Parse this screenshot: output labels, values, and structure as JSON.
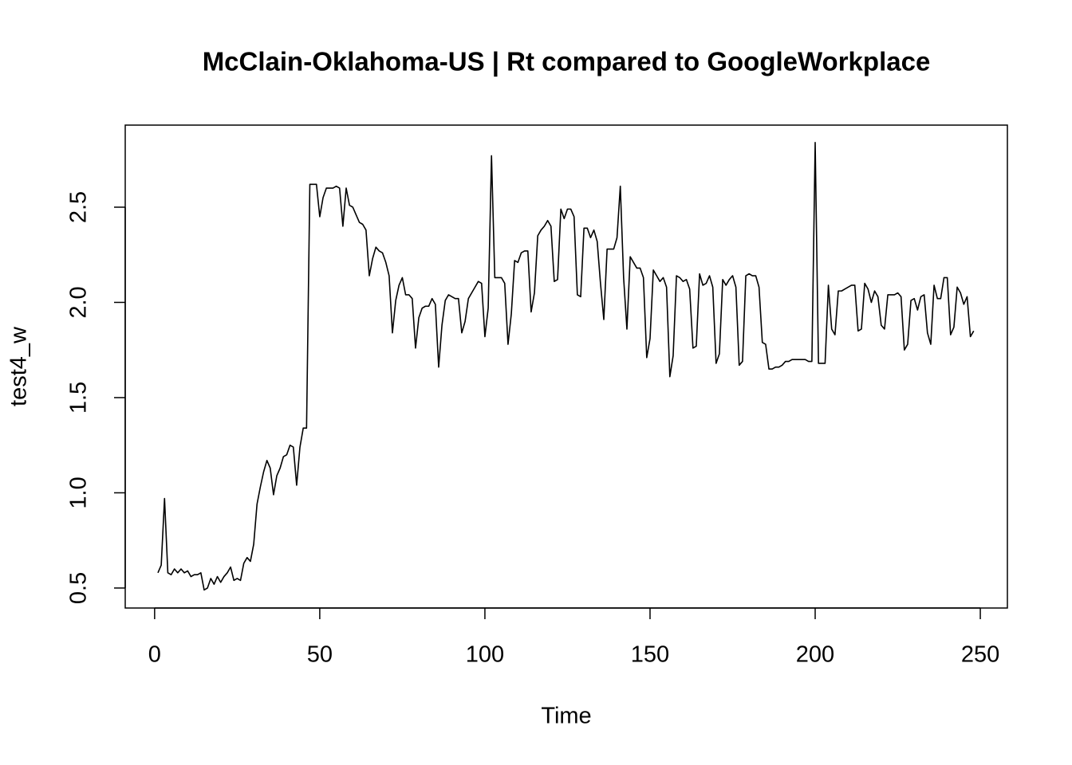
{
  "chart_data": {
    "type": "line",
    "title": "McClain-Oklahoma-US | Rt compared to GoogleWorkplace",
    "x_label": "Time",
    "y_label": "test4_w",
    "x": [
      1,
      2,
      3,
      4,
      5,
      6,
      7,
      8,
      9,
      10,
      11,
      12,
      13,
      14,
      15,
      16,
      17,
      18,
      19,
      20,
      21,
      22,
      23,
      24,
      25,
      26,
      27,
      28,
      29,
      30,
      31,
      32,
      33,
      34,
      35,
      36,
      37,
      38,
      39,
      40,
      41,
      42,
      43,
      44,
      45,
      46,
      47,
      48,
      49,
      50,
      51,
      52,
      53,
      54,
      55,
      56,
      57,
      58,
      59,
      60,
      61,
      62,
      63,
      64,
      65,
      66,
      67,
      68,
      69,
      70,
      71,
      72,
      73,
      74,
      75,
      76,
      77,
      78,
      79,
      80,
      81,
      82,
      83,
      84,
      85,
      86,
      87,
      88,
      89,
      90,
      91,
      92,
      93,
      94,
      95,
      96,
      97,
      98,
      99,
      100,
      101,
      102,
      103,
      104,
      105,
      106,
      107,
      108,
      109,
      110,
      111,
      112,
      113,
      114,
      115,
      116,
      117,
      118,
      119,
      120,
      121,
      122,
      123,
      124,
      125,
      126,
      127,
      128,
      129,
      130,
      131,
      132,
      133,
      134,
      135,
      136,
      137,
      138,
      139,
      140,
      141,
      142,
      143,
      144,
      145,
      146,
      147,
      148,
      149,
      150,
      151,
      152,
      153,
      154,
      155,
      156,
      157,
      158,
      159,
      160,
      161,
      162,
      163,
      164,
      165,
      166,
      167,
      168,
      169,
      170,
      171,
      172,
      173,
      174,
      175,
      176,
      177,
      178,
      179,
      180,
      181,
      182,
      183,
      184,
      185,
      186,
      187,
      188,
      189,
      190,
      191,
      192,
      193,
      194,
      195,
      196,
      197,
      198,
      199,
      200,
      201,
      202,
      203,
      204,
      205,
      206,
      207,
      208,
      209,
      210,
      211,
      212,
      213,
      214,
      215,
      216,
      217,
      218,
      219,
      220,
      221,
      222,
      223,
      224,
      225,
      226,
      227,
      228,
      229,
      230,
      231,
      232,
      233,
      234,
      235,
      236,
      237,
      238,
      239,
      240,
      241,
      242,
      243,
      244,
      245,
      246,
      247,
      248
    ],
    "values": [
      0.58,
      0.62,
      0.97,
      0.58,
      0.57,
      0.6,
      0.58,
      0.6,
      0.58,
      0.59,
      0.56,
      0.57,
      0.57,
      0.58,
      0.49,
      0.5,
      0.55,
      0.52,
      0.56,
      0.53,
      0.56,
      0.58,
      0.61,
      0.54,
      0.55,
      0.54,
      0.63,
      0.66,
      0.64,
      0.73,
      0.94,
      1.03,
      1.11,
      1.17,
      1.13,
      0.99,
      1.09,
      1.13,
      1.19,
      1.2,
      1.25,
      1.24,
      1.04,
      1.24,
      1.34,
      1.34,
      2.62,
      2.62,
      2.62,
      2.45,
      2.55,
      2.6,
      2.6,
      2.6,
      2.61,
      2.6,
      2.4,
      2.6,
      2.51,
      2.5,
      2.46,
      2.42,
      2.41,
      2.38,
      2.14,
      2.23,
      2.29,
      2.27,
      2.26,
      2.21,
      2.14,
      1.84,
      2.01,
      2.09,
      2.13,
      2.04,
      2.04,
      2.02,
      1.76,
      1.92,
      1.97,
      1.98,
      1.98,
      2.02,
      1.99,
      1.66,
      1.88,
      2.01,
      2.04,
      2.03,
      2.02,
      2.02,
      1.84,
      1.9,
      2.02,
      2.05,
      2.08,
      2.11,
      2.1,
      1.82,
      1.97,
      2.77,
      2.13,
      2.13,
      2.13,
      2.1,
      1.78,
      1.94,
      2.22,
      2.21,
      2.26,
      2.27,
      2.27,
      1.95,
      2.05,
      2.35,
      2.38,
      2.4,
      2.43,
      2.4,
      2.11,
      2.12,
      2.49,
      2.44,
      2.49,
      2.49,
      2.45,
      2.04,
      2.03,
      2.39,
      2.39,
      2.34,
      2.38,
      2.32,
      2.1,
      1.91,
      2.28,
      2.28,
      2.28,
      2.34,
      2.61,
      2.13,
      1.86,
      2.24,
      2.21,
      2.18,
      2.18,
      2.13,
      1.71,
      1.81,
      2.17,
      2.14,
      2.11,
      2.13,
      2.08,
      1.61,
      1.72,
      2.14,
      2.13,
      2.11,
      2.12,
      2.07,
      1.76,
      1.77,
      2.15,
      2.09,
      2.1,
      2.14,
      2.08,
      1.68,
      1.73,
      2.12,
      2.09,
      2.12,
      2.14,
      2.08,
      1.67,
      1.69,
      2.14,
      2.15,
      2.14,
      2.14,
      2.08,
      1.79,
      1.78,
      1.65,
      1.65,
      1.66,
      1.66,
      1.67,
      1.69,
      1.69,
      1.7,
      1.7,
      1.7,
      1.7,
      1.7,
      1.69,
      1.69,
      2.84,
      1.68,
      1.68,
      1.68,
      2.09,
      1.86,
      1.83,
      2.06,
      2.06,
      2.07,
      2.08,
      2.09,
      2.09,
      1.85,
      1.86,
      2.1,
      2.07,
      2.0,
      2.06,
      2.03,
      1.88,
      1.86,
      2.04,
      2.04,
      2.04,
      2.05,
      2.03,
      1.75,
      1.78,
      2.01,
      2.02,
      1.96,
      2.03,
      2.04,
      1.84,
      1.78,
      2.09,
      2.02,
      2.02,
      2.13,
      2.13,
      1.83,
      1.87,
      2.08,
      2.05,
      1.99,
      2.03,
      1.82,
      1.85
    ],
    "color": "#000000",
    "xlim": [
      -8.9,
      258.2
    ],
    "ylim": [
      0.395,
      2.931
    ],
    "xticks": [
      0,
      50,
      100,
      150,
      200,
      250
    ],
    "yticks": [
      0.5,
      {
        "value": 1,
        "label": "1.0"
      },
      1.5,
      {
        "value": 2,
        "label": "2.0"
      },
      2.5
    ]
  }
}
